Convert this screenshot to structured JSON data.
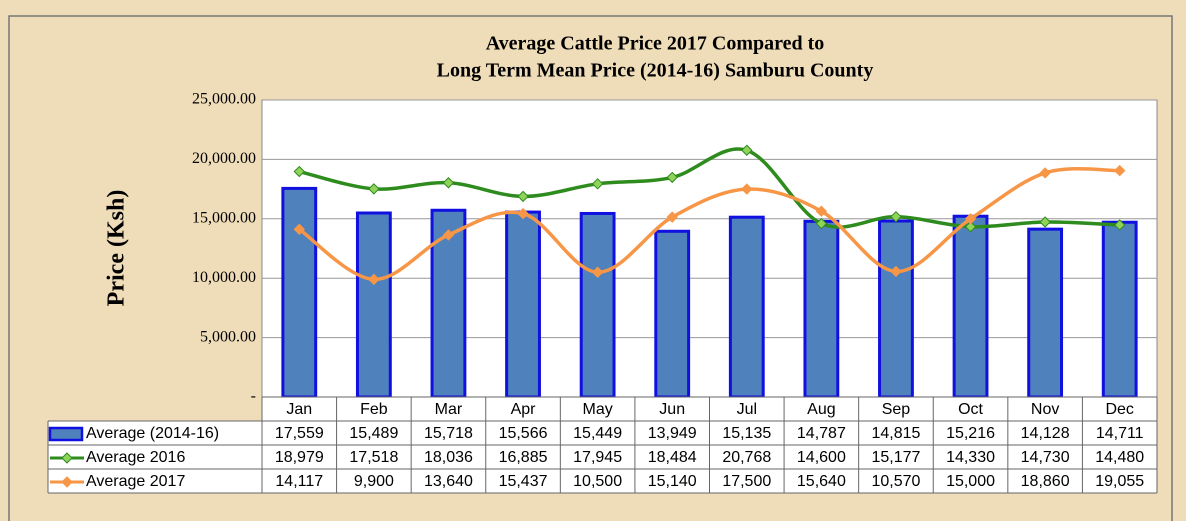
{
  "chart_data": {
    "type": "bar_line_table",
    "title_lines": [
      "Average Cattle  Price 2017 Compared to",
      "Long Term Mean Price (2014-16) Samburu County"
    ],
    "y_label": "Price (Ksh)",
    "categories": [
      "Jan",
      "Feb",
      "Mar",
      "Apr",
      "May",
      "Jun",
      "Jul",
      "Aug",
      "Sep",
      "Oct",
      "Nov",
      "Dec"
    ],
    "ylim": [
      0,
      25000
    ],
    "yticks": [
      {
        "value": 0,
        "label": "-"
      },
      {
        "value": 5000,
        "label": "5,000.00"
      },
      {
        "value": 10000,
        "label": "10,000.00"
      },
      {
        "value": 15000,
        "label": "15,000.00"
      },
      {
        "value": 20000,
        "label": "20,000.00"
      },
      {
        "value": 25000,
        "label": "25,000.00"
      }
    ],
    "grid": true,
    "series": [
      {
        "name": "Average (2014-16)",
        "kind": "bar",
        "color": "#4f81bd",
        "edge": "#1010e0",
        "values": [
          17559,
          15489,
          15718,
          15566,
          15449,
          13949,
          15135,
          14787,
          14815,
          15216,
          14128,
          14711
        ],
        "value_labels": [
          "17,559",
          "15,489",
          "15,718",
          "15,566",
          "15,449",
          "13,949",
          "15,135",
          "14,787",
          "14,815",
          "15,216",
          "14,128",
          "14,711"
        ]
      },
      {
        "name": "Average 2016",
        "kind": "line",
        "color": "#2e8b1e",
        "marker": "#8fd35a",
        "values": [
          18979,
          17518,
          18036,
          16885,
          17945,
          18484,
          20768,
          14600,
          15177,
          14330,
          14730,
          14480
        ],
        "value_labels": [
          "18,979",
          "17,518",
          "18,036",
          "16,885",
          "17,945",
          "18,484",
          "20,768",
          "14,600",
          "15,177",
          "14,330",
          "14,730",
          "14,480"
        ]
      },
      {
        "name": "Average 2017",
        "kind": "line",
        "color": "#f79646",
        "marker": "#f79646",
        "values": [
          14117,
          9900,
          13640,
          15437,
          10500,
          15140,
          17500,
          15640,
          10570,
          15000,
          18860,
          19055
        ],
        "value_labels": [
          "14,117",
          "9,900",
          "13,640",
          "15,437",
          "10,500",
          "15,140",
          "17,500",
          "15,640",
          "10,570",
          "15,000",
          "18,860",
          "19,055"
        ]
      }
    ]
  }
}
